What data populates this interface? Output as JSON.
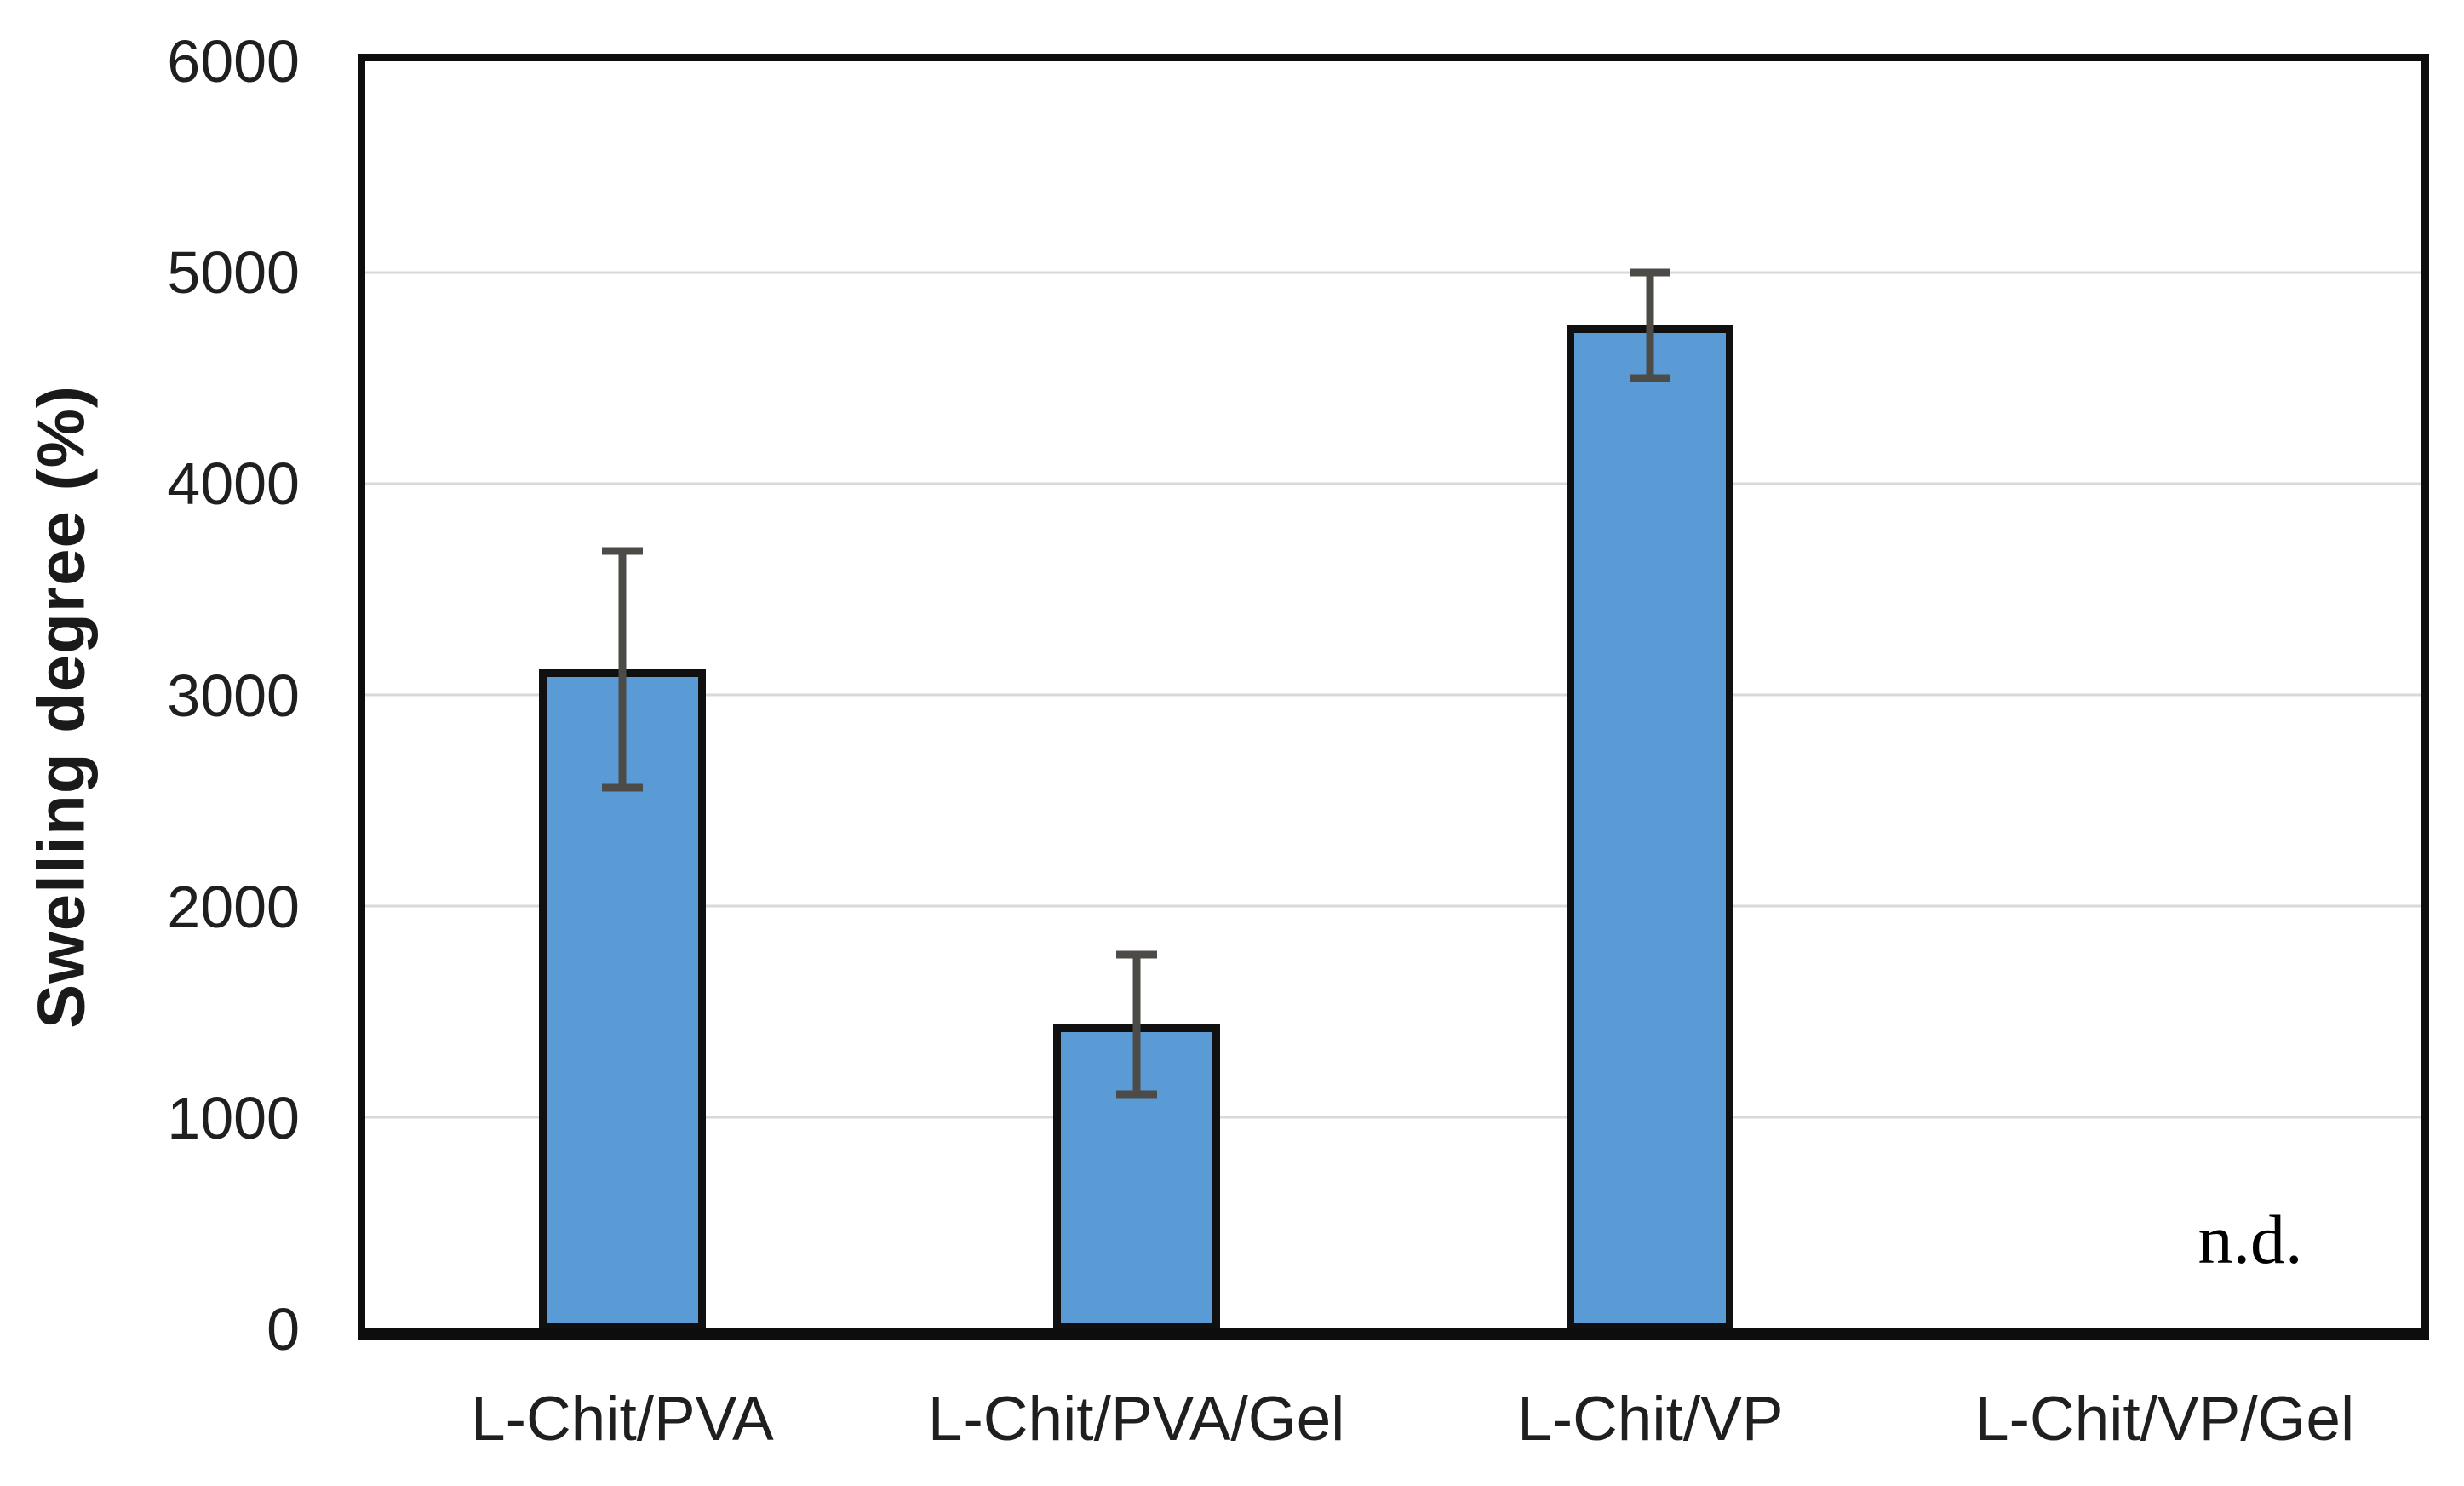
{
  "chart_data": {
    "type": "bar",
    "title": "",
    "xlabel": "",
    "ylabel": "Swelling degree (%)",
    "categories": [
      "L-Chit/PVA",
      "L-Chit/PVA/Gel",
      "L-Chit/VP",
      "L-Chit/VP/Gel"
    ],
    "values": [
      3120,
      1440,
      4750,
      null
    ],
    "errors": [
      560,
      330,
      250,
      null
    ],
    "yticks": [
      0,
      1000,
      2000,
      3000,
      4000,
      5000,
      6000
    ],
    "ylim": [
      0,
      6000
    ],
    "grid": true,
    "legend": "none",
    "annotations": [
      {
        "text": "n.d.",
        "category": "L-Chit/VP/Gel",
        "meaning": "not determined"
      }
    ],
    "colors": {
      "bar_fill": "#5B9BD5",
      "bar_border": "#101010",
      "error_bar": "#4d4b47",
      "gridline": "#d9d9d9",
      "plot_border": "#0d0d0d",
      "text": "#1f1f1f"
    }
  }
}
